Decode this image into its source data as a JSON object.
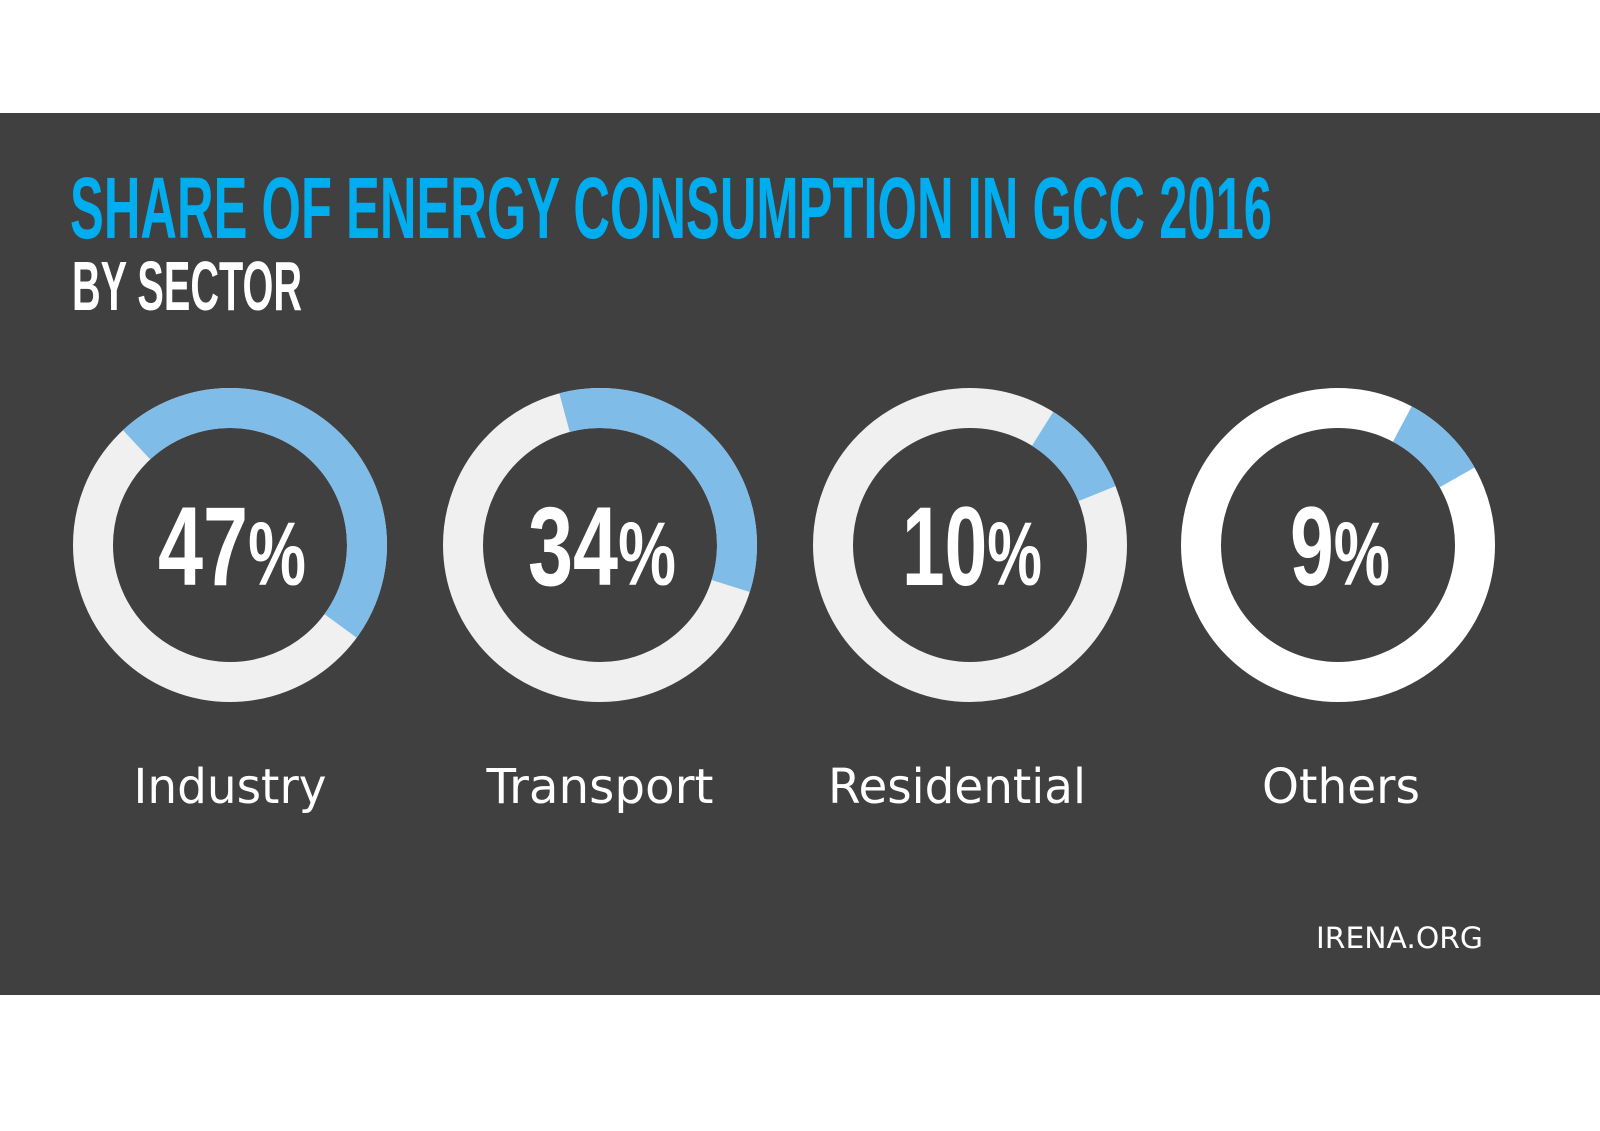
{
  "chart_data": {
    "type": "pie",
    "variant": "donut-gauges",
    "title": "SHARE OF ENERGY CONSUMPTION IN GCC 2016",
    "subtitle": "BY SECTOR",
    "categories": [
      "Industry",
      "Transport",
      "Residential",
      "Others"
    ],
    "values": [
      47,
      34,
      10,
      9
    ],
    "unit": "%",
    "value_labels": [
      "47",
      "34",
      "10",
      "9"
    ],
    "start_angles_deg": [
      -43,
      -15,
      32,
      28
    ],
    "ring_colors": [
      "#f0f0f0",
      "#f0f0f0",
      "#f0f0f0",
      "#ffffff"
    ]
  },
  "source": "IRENA.ORG",
  "colors": {
    "background": "#404040",
    "title": "#00aeef",
    "subtitle": "#ffffff",
    "highlight": "#7fbce8",
    "text": "#ffffff"
  }
}
